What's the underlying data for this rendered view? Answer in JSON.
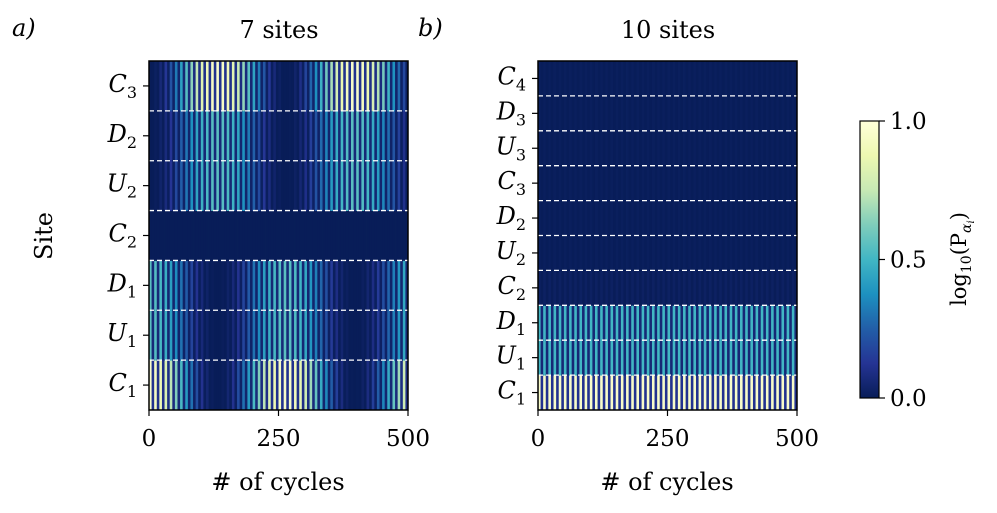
{
  "figure": {
    "colorbar": {
      "label_main": "log",
      "label_sub": "10",
      "label_args": "(P",
      "label_greek": "α",
      "label_index": "i",
      "label_close": ")",
      "ticks": [
        "0.0",
        "0.5",
        "1.0"
      ],
      "range": [
        0,
        1
      ],
      "colormap": "YlGnBu",
      "colors": [
        "#081d58",
        "#253494",
        "#225ea8",
        "#1d91c0",
        "#41b6c4",
        "#7fcdbb",
        "#c7e9b4",
        "#edf8b1",
        "#ffffd9"
      ]
    },
    "separator_color": "#ffffff"
  },
  "chart_data": [
    {
      "type": "heatmap",
      "panel_label": "a)",
      "title": "7 sites",
      "xlabel": "# of cycles",
      "ylabel": "Site",
      "xlim": [
        0,
        500
      ],
      "xticks": [
        "0",
        "250",
        "500"
      ],
      "sites": [
        {
          "base": "C",
          "sub": "1"
        },
        {
          "base": "U",
          "sub": "1"
        },
        {
          "base": "D",
          "sub": "1"
        },
        {
          "base": "C",
          "sub": "2"
        },
        {
          "base": "U",
          "sub": "2"
        },
        {
          "base": "D",
          "sub": "2"
        },
        {
          "base": "C",
          "sub": "3"
        }
      ],
      "site_intensity": [
        0.95,
        0.55,
        0.55,
        0.0,
        0.55,
        0.55,
        0.95
      ],
      "envelope_period": 265,
      "envelope_phase": [
        0,
        0,
        0,
        0,
        132,
        132,
        132
      ],
      "stripe_period": 10
    },
    {
      "type": "heatmap",
      "panel_label": "b)",
      "title": "10 sites",
      "xlabel": "# of cycles",
      "ylabel": "",
      "xlim": [
        0,
        500
      ],
      "xticks": [
        "0",
        "250",
        "500"
      ],
      "sites": [
        {
          "base": "C",
          "sub": "1"
        },
        {
          "base": "U",
          "sub": "1"
        },
        {
          "base": "D",
          "sub": "1"
        },
        {
          "base": "C",
          "sub": "2"
        },
        {
          "base": "U",
          "sub": "2"
        },
        {
          "base": "D",
          "sub": "2"
        },
        {
          "base": "C",
          "sub": "3"
        },
        {
          "base": "U",
          "sub": "3"
        },
        {
          "base": "D",
          "sub": "3"
        },
        {
          "base": "C",
          "sub": "4"
        }
      ],
      "site_intensity": [
        0.95,
        0.5,
        0.5,
        0.02,
        0.01,
        0.01,
        0.01,
        0.01,
        0.01,
        0.01
      ],
      "envelope_period": 0,
      "envelope_phase": [
        0,
        0,
        0,
        0,
        0,
        0,
        0,
        0,
        0,
        0
      ],
      "stripe_period": 10
    }
  ]
}
